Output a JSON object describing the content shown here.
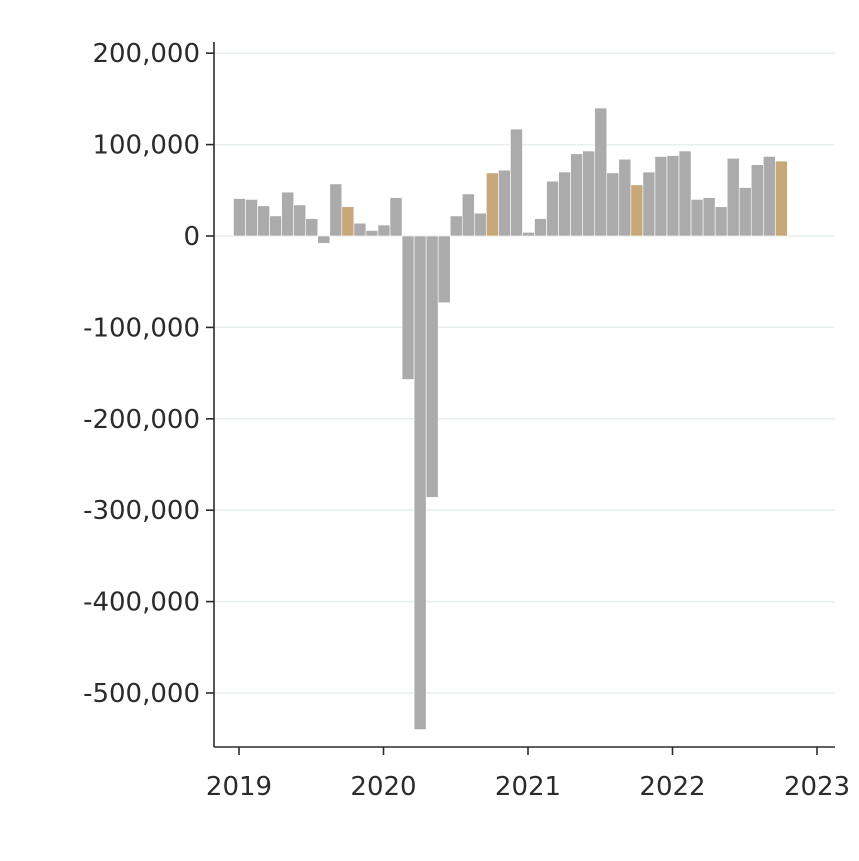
{
  "chart_data": {
    "type": "bar",
    "title": "",
    "xlabel": "",
    "ylabel": "",
    "x_start": "2019-01",
    "x_ticks": [
      "2019",
      "2020",
      "2021",
      "2022",
      "2023"
    ],
    "y_ticks": [
      200000,
      100000,
      0,
      -100000,
      -200000,
      -300000,
      -400000,
      -500000
    ],
    "y_tick_labels": [
      "200,000",
      "100,000",
      "0",
      "-100,000",
      "-200,000",
      "-300,000",
      "-400,000",
      "-500,000"
    ],
    "xlim": [
      "2019-01",
      "2023-01"
    ],
    "ylim": [
      -560000,
      205000
    ],
    "grid": "horizontal",
    "colors": {
      "default": "#ababab",
      "highlight": "#c8a878"
    },
    "categories": [
      "2019-01",
      "2019-02",
      "2019-03",
      "2019-04",
      "2019-05",
      "2019-06",
      "2019-07",
      "2019-08",
      "2019-09",
      "2019-10",
      "2019-11",
      "2019-12",
      "2020-01",
      "2020-02",
      "2020-03",
      "2020-04",
      "2020-05",
      "2020-06",
      "2020-07",
      "2020-08",
      "2020-09",
      "2020-10",
      "2020-11",
      "2020-12",
      "2021-01",
      "2021-02",
      "2021-03",
      "2021-04",
      "2021-05",
      "2021-06",
      "2021-07",
      "2021-08",
      "2021-09",
      "2021-10",
      "2021-11",
      "2021-12",
      "2022-01",
      "2022-02",
      "2022-03",
      "2022-04",
      "2022-05",
      "2022-06",
      "2022-07",
      "2022-08",
      "2022-09",
      "2022-10"
    ],
    "values": [
      41000,
      40000,
      33000,
      22000,
      48000,
      34000,
      19000,
      -8000,
      57000,
      32000,
      14000,
      6000,
      12000,
      42000,
      -157000,
      -540000,
      -286000,
      -73000,
      22000,
      46000,
      25000,
      69000,
      72000,
      117000,
      4000,
      19000,
      60000,
      70000,
      90000,
      93000,
      140000,
      69000,
      84000,
      56000,
      70000,
      87000,
      88000,
      93000,
      40000,
      42000,
      32000,
      85000,
      53000,
      78000,
      87000,
      82000
    ],
    "highlight": [
      false,
      false,
      false,
      false,
      false,
      false,
      false,
      false,
      false,
      true,
      false,
      false,
      false,
      false,
      false,
      false,
      false,
      false,
      false,
      false,
      false,
      true,
      false,
      false,
      false,
      false,
      false,
      false,
      false,
      false,
      false,
      false,
      false,
      true,
      false,
      false,
      false,
      false,
      false,
      false,
      false,
      false,
      false,
      false,
      false,
      true
    ]
  }
}
